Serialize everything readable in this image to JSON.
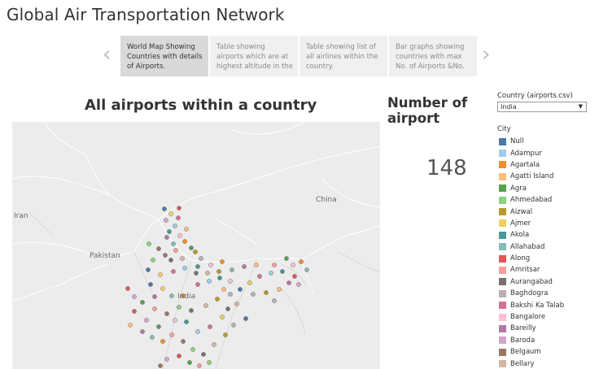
{
  "dashboard": {
    "title": "Global Air Transportation Network"
  },
  "story": {
    "points": [
      {
        "label": "World Map Showing Countries with details of Airports.",
        "active": true
      },
      {
        "label": "Table showing airports which are at highest altitude in the",
        "active": false
      },
      {
        "label": "Table showing list of all airlines within the country.",
        "active": false
      },
      {
        "label": "Bar graphs showing countries with max No. of Airports &No.",
        "active": false
      }
    ]
  },
  "map": {
    "title": "All airports within a country",
    "place_labels": {
      "iran": "Iran",
      "pakistan": "Pakistan",
      "india": "India",
      "china": "China"
    }
  },
  "kpi": {
    "title": "Number of airport",
    "value": "148"
  },
  "filter": {
    "label": "Country (airports.csv)",
    "selected": "India"
  },
  "legend": {
    "title": "City",
    "items": [
      {
        "label": "Null",
        "color": "#4e79a7"
      },
      {
        "label": "Adampur",
        "color": "#a0cbe8"
      },
      {
        "label": "Agartala",
        "color": "#f28e2b"
      },
      {
        "label": "Agatti Island",
        "color": "#ffbe7d"
      },
      {
        "label": "Agra",
        "color": "#59a14f"
      },
      {
        "label": "Ahmedabad",
        "color": "#8cd17d"
      },
      {
        "label": "Aizwal",
        "color": "#b6992d"
      },
      {
        "label": "Ajmer",
        "color": "#f1ce63"
      },
      {
        "label": "Akola",
        "color": "#499894"
      },
      {
        "label": "Allahabad",
        "color": "#86bcb6"
      },
      {
        "label": "Along",
        "color": "#e15759"
      },
      {
        "label": "Amritsar",
        "color": "#ff9d9a"
      },
      {
        "label": "Aurangabad",
        "color": "#79706e"
      },
      {
        "label": "Baghdogra",
        "color": "#bab0ac"
      },
      {
        "label": "Bakshi Ka Talab",
        "color": "#d37295"
      },
      {
        "label": "Bangalore",
        "color": "#fabfd2"
      },
      {
        "label": "Bareilly",
        "color": "#b07aa1"
      },
      {
        "label": "Baroda",
        "color": "#d4a6c8"
      },
      {
        "label": "Belgaum",
        "color": "#9d7660"
      },
      {
        "label": "Bellary",
        "color": "#d7b5a6"
      }
    ]
  }
}
